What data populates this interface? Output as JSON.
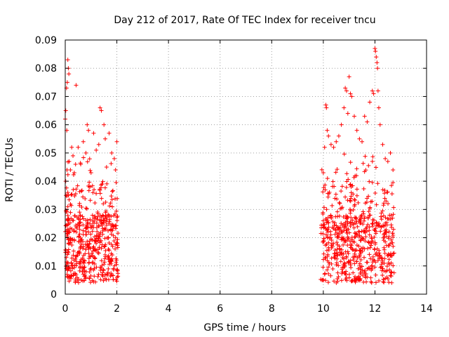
{
  "chart_data": {
    "type": "scatter",
    "title": "Day 212 of 2017, Rate Of TEC Index for receiver tncu",
    "xlabel": "GPS time / hours",
    "ylabel": "ROTI / TECUs",
    "xlim": [
      0,
      14
    ],
    "ylim": [
      0,
      0.09
    ],
    "xticks": [
      0,
      2,
      4,
      6,
      8,
      10,
      12,
      14
    ],
    "yticks": [
      0,
      0.01,
      0.02,
      0.03,
      0.04,
      0.05,
      0.06,
      0.07,
      0.08,
      0.09
    ],
    "ytick_labels": [
      "0",
      "0.01",
      "0.02",
      "0.03",
      "0.04",
      "0.05",
      "0.06",
      "0.07",
      "0.08",
      "0.09"
    ],
    "grid": true,
    "marker": "+",
    "color": "#ff0000",
    "series": [
      {
        "name": "ROTI",
        "points": [
          [
            0.0,
            0.062
          ],
          [
            0.02,
            0.065
          ],
          [
            0.05,
            0.073
          ],
          [
            0.08,
            0.075
          ],
          [
            0.1,
            0.083
          ],
          [
            0.12,
            0.08
          ],
          [
            0.14,
            0.078
          ],
          [
            0.06,
            0.058
          ],
          [
            0.03,
            0.035
          ],
          [
            0.07,
            0.044
          ],
          [
            0.1,
            0.031
          ],
          [
            0.15,
            0.047
          ],
          [
            0.2,
            0.044
          ],
          [
            0.25,
            0.052
          ],
          [
            0.3,
            0.049
          ],
          [
            0.35,
            0.043
          ],
          [
            0.4,
            0.046
          ],
          [
            0.42,
            0.074
          ],
          [
            0.5,
            0.052
          ],
          [
            0.6,
            0.046
          ],
          [
            0.7,
            0.054
          ],
          [
            0.8,
            0.05
          ],
          [
            0.85,
            0.06
          ],
          [
            0.9,
            0.058
          ],
          [
            1.0,
            0.043
          ],
          [
            1.1,
            0.057
          ],
          [
            1.2,
            0.051
          ],
          [
            1.3,
            0.053
          ],
          [
            1.35,
            0.066
          ],
          [
            1.4,
            0.065
          ],
          [
            1.5,
            0.06
          ],
          [
            1.55,
            0.055
          ],
          [
            1.6,
            0.045
          ],
          [
            1.7,
            0.057
          ],
          [
            1.8,
            0.05
          ],
          [
            1.9,
            0.048
          ],
          [
            2.0,
            0.054
          ],
          [
            1.95,
            0.044
          ],
          [
            10.0,
            0.043
          ],
          [
            10.05,
            0.052
          ],
          [
            10.1,
            0.067
          ],
          [
            10.12,
            0.066
          ],
          [
            10.15,
            0.058
          ],
          [
            10.2,
            0.056
          ],
          [
            10.3,
            0.053
          ],
          [
            10.4,
            0.052
          ],
          [
            10.5,
            0.054
          ],
          [
            10.6,
            0.056
          ],
          [
            10.7,
            0.06
          ],
          [
            10.8,
            0.066
          ],
          [
            10.85,
            0.073
          ],
          [
            10.9,
            0.072
          ],
          [
            10.95,
            0.064
          ],
          [
            11.0,
            0.077
          ],
          [
            11.05,
            0.071
          ],
          [
            11.1,
            0.07
          ],
          [
            11.2,
            0.063
          ],
          [
            11.3,
            0.058
          ],
          [
            11.4,
            0.055
          ],
          [
            11.5,
            0.054
          ],
          [
            11.6,
            0.063
          ],
          [
            11.7,
            0.061
          ],
          [
            11.8,
            0.068
          ],
          [
            11.9,
            0.072
          ],
          [
            11.95,
            0.071
          ],
          [
            12.0,
            0.087
          ],
          [
            12.02,
            0.086
          ],
          [
            12.05,
            0.084
          ],
          [
            12.08,
            0.082
          ],
          [
            12.1,
            0.08
          ],
          [
            12.12,
            0.072
          ],
          [
            12.15,
            0.066
          ],
          [
            12.2,
            0.06
          ],
          [
            12.3,
            0.053
          ],
          [
            12.4,
            0.048
          ],
          [
            12.5,
            0.047
          ],
          [
            12.6,
            0.05
          ],
          [
            12.7,
            0.044
          ]
        ]
      }
    ]
  }
}
